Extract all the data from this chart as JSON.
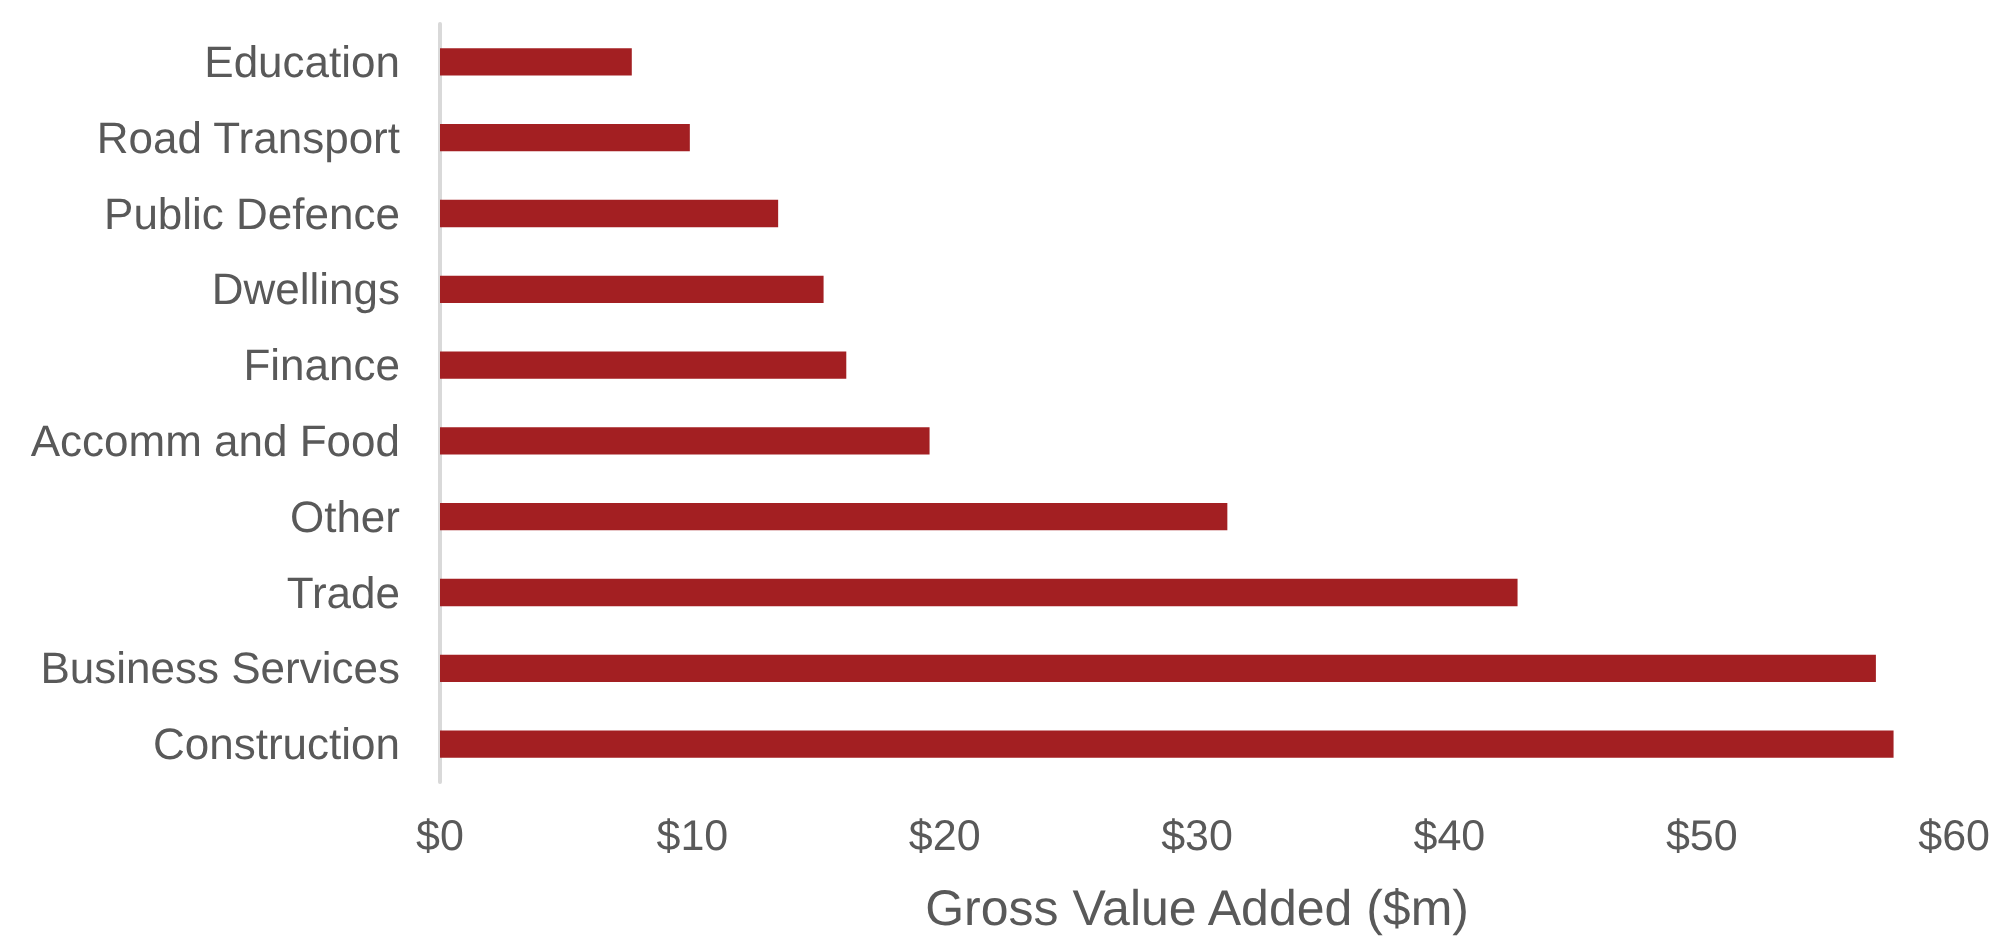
{
  "chart_data": {
    "type": "bar",
    "orientation": "horizontal",
    "xlabel": "Gross Value Added ($m)",
    "categories": [
      "Education",
      "Road Transport",
      "Public Defence",
      "Dwellings",
      "Finance",
      "Accomm and Food",
      "Other",
      "Trade",
      "Business Services",
      "Construction"
    ],
    "values": [
      7.6,
      9.9,
      13.4,
      15.2,
      16.1,
      19.4,
      31.2,
      42.7,
      56.9,
      57.6
    ],
    "color": "#a31f22",
    "xlim": [
      0,
      60
    ],
    "xticks": [
      {
        "value": 0,
        "label": "$0"
      },
      {
        "value": 10,
        "label": "$10"
      },
      {
        "value": 20,
        "label": "$20"
      },
      {
        "value": 30,
        "label": "$30"
      },
      {
        "value": 40,
        "label": "$40"
      },
      {
        "value": 50,
        "label": "$50"
      },
      {
        "value": 60,
        "label": "$60"
      }
    ],
    "grid": false
  }
}
